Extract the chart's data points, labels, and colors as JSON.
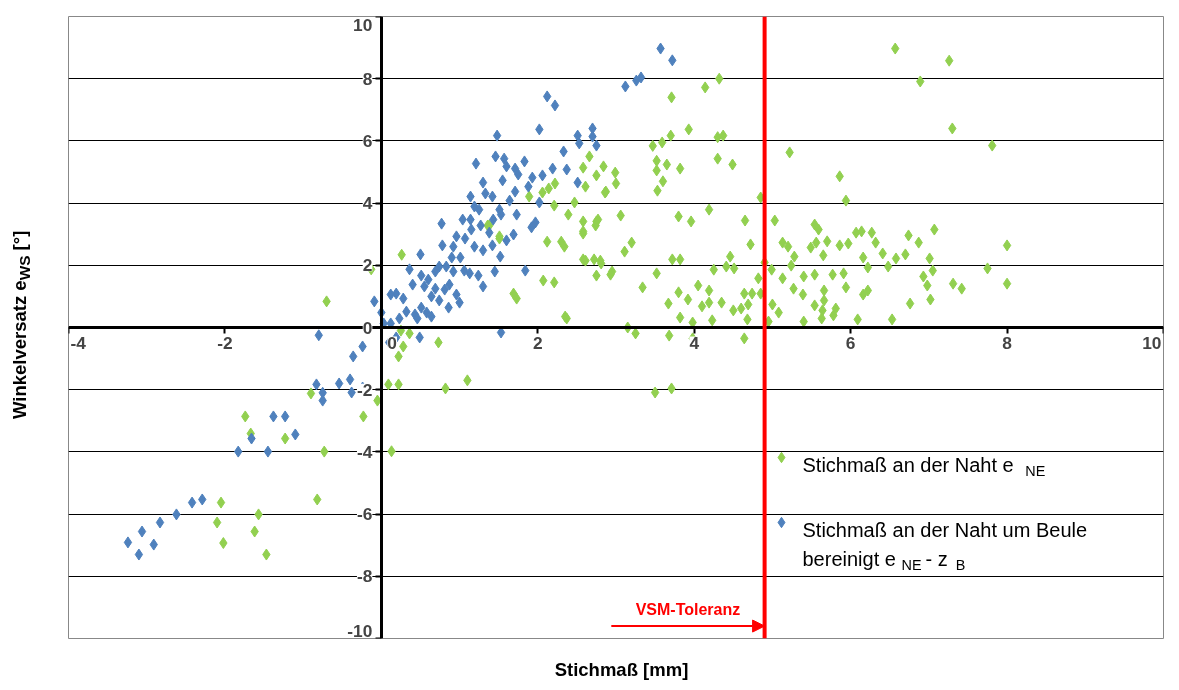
{
  "chart_data": {
    "type": "scatter",
    "xlabel": "Stichmaß [mm]",
    "ylabel": "Winkelversatz e$_{WS}$ [°]",
    "xlim": [
      -4,
      10
    ],
    "xticks": [
      -4,
      -2,
      0,
      2,
      4,
      6,
      8,
      10
    ],
    "ylim": [
      -10,
      10
    ],
    "yticks": [
      -10,
      -8,
      -6,
      -4,
      -2,
      0,
      2,
      4,
      6,
      8,
      10
    ],
    "grid": "y",
    "legend": "bottom right",
    "marker": "diamond",
    "ref_lines": [
      {
        "axis": "x",
        "value": 4.9,
        "label": "VSM-Toleranz",
        "color": "#ff0000"
      }
    ],
    "series": [
      {
        "name": "Stichmaß an der Naht e$_{NE}$",
        "color": "#92d050",
        "x": [
          -1.74,
          -1.67,
          -1.23,
          -0.9,
          -0.73,
          -0.23,
          -0.05,
          0.13,
          0.09,
          0.22,
          0.82,
          1.1,
          0.73,
          0.28,
          0.22,
          0.36,
          -0.82,
          -2.05,
          -2.1,
          -2.02,
          -1.57,
          -1.62,
          -1.47,
          -0.13,
          0.26,
          -0.7,
          1.69,
          1.73,
          2.07,
          2.21,
          2.35,
          2.12,
          2.3,
          2.34,
          1.89,
          2.06,
          2.14,
          2.22,
          2.21,
          2.39,
          2.47,
          2.58,
          2.58,
          2.75,
          2.58,
          2.72,
          2.81,
          2.75,
          2.95,
          2.66,
          2.58,
          2.61,
          2.75,
          2.84,
          2.87,
          1.38,
          1.51,
          6.57,
          7.26,
          6.89,
          7.3,
          7.81,
          4.32,
          4.14,
          3.71,
          3.93,
          3.7,
          3.59,
          3.47,
          4.3,
          4.37,
          4.3,
          4.49,
          3.82,
          3.52,
          3.65,
          3.52,
          3.6,
          3.53,
          2.99,
          3.0,
          2.86,
          3.06,
          3.8,
          3.96,
          4.19,
          4.65,
          4.85,
          5.22,
          5.86,
          5.94,
          5.03,
          2.74,
          2.77,
          2.58,
          3.2,
          3.11,
          2.61,
          2.8,
          2.93,
          3.34,
          3.52,
          3.72,
          3.82,
          3.67,
          3.8,
          3.92,
          3.82,
          3.98,
          3.15,
          3.25,
          4.05,
          4.19,
          4.25,
          4.46,
          4.41,
          4.51,
          4.72,
          4.1,
          4.19,
          4.23,
          4.35,
          4.5,
          4.6,
          4.69,
          4.68,
          4.64,
          4.74,
          4.85,
          4.82,
          4.9,
          4.99,
          5.13,
          5.2,
          5.13,
          5.28,
          5.24,
          5.0,
          5.08,
          4.95,
          5.4,
          5.27,
          5.39,
          5.54,
          5.64,
          5.63,
          5.78,
          5.81,
          5.66,
          5.66,
          5.4,
          5.54,
          5.49,
          5.56,
          5.54,
          5.59,
          5.65,
          5.77,
          5.91,
          5.94,
          5.7,
          5.86,
          5.97,
          6.16,
          6.22,
          6.16,
          6.22,
          6.09,
          6.07,
          6.14,
          6.27,
          6.32,
          6.41,
          6.48,
          6.58,
          6.7,
          6.74,
          6.87,
          7.07,
          7.01,
          7.05,
          6.93,
          6.98,
          7.02,
          6.76,
          6.53,
          7.31,
          7.42,
          7.75,
          8.0,
          8.0,
          2.37,
          3.68,
          3.98,
          4.64,
          3.5,
          3.71,
          0.25,
          1.36,
          1.51
        ],
        "values": [
          -2.86,
          -3.41,
          -3.57,
          -2.12,
          -3.99,
          -2.86,
          -2.35,
          -3.98,
          -1.83,
          -1.83,
          -1.96,
          -1.7,
          -0.48,
          -0.61,
          -0.93,
          -0.19,
          -5.53,
          -5.63,
          -6.27,
          -6.93,
          -6.01,
          -6.56,
          -7.3,
          1.87,
          2.34,
          0.84,
          1.09,
          0.93,
          1.51,
          1.45,
          0.35,
          2.76,
          2.76,
          2.6,
          4.21,
          4.34,
          4.47,
          4.63,
          3.92,
          3.63,
          4.02,
          3.41,
          3.09,
          3.41,
          2.19,
          2.19,
          2.06,
          1.67,
          1.8,
          5.5,
          5.14,
          4.53,
          4.89,
          5.18,
          4.37,
          3.28,
          2.86,
          8.97,
          8.58,
          7.91,
          6.4,
          5.85,
          8.0,
          7.72,
          7.4,
          6.37,
          6.17,
          5.95,
          5.84,
          6.12,
          6.17,
          5.43,
          5.24,
          5.11,
          5.36,
          5.24,
          5.05,
          4.7,
          4.4,
          4.98,
          4.63,
          4.34,
          3.6,
          3.57,
          3.41,
          3.79,
          3.44,
          4.18,
          5.63,
          4.86,
          4.08,
          3.44,
          3.28,
          3.47,
          3.02,
          2.73,
          2.44,
          2.15,
          2.15,
          1.7,
          1.29,
          1.74,
          2.19,
          2.19,
          0.77,
          1.13,
          0.9,
          0.32,
          0.16,
          0.0,
          -0.19,
          1.35,
          1.19,
          1.86,
          2.28,
          1.96,
          1.9,
          2.67,
          0.68,
          0.8,
          0.23,
          0.8,
          0.55,
          0.61,
          0.74,
          0.26,
          1.09,
          1.09,
          1.09,
          1.58,
          2.09,
          1.86,
          2.73,
          2.6,
          1.58,
          2.28,
          1.99,
          0.74,
          0.48,
          0.19,
          0.19,
          1.25,
          1.06,
          0.71,
          0.55,
          0.29,
          0.39,
          0.61,
          1.19,
          0.87,
          1.64,
          1.7,
          2.57,
          2.73,
          3.31,
          3.15,
          2.32,
          1.7,
          1.74,
          1.29,
          2.77,
          2.64,
          2.7,
          2.25,
          1.93,
          1.06,
          1.19,
          0.26,
          3.05,
          3.09,
          3.05,
          2.73,
          2.38,
          1.96,
          2.22,
          2.35,
          2.96,
          2.73,
          3.15,
          2.22,
          1.83,
          1.64,
          1.35,
          0.9,
          0.77,
          0.26,
          1.41,
          1.25,
          1.9,
          2.64,
          1.41,
          0.29,
          -0.26,
          -0.35,
          -0.35,
          -2.09,
          -1.96,
          -0.1,
          3.28,
          2.93
        ]
      },
      {
        "name": "Stichmaß an der Naht um Beule\nbereinigt e$_{NE}$ - z$_{B}$",
        "color": "#4f81bd",
        "x": [
          3.57,
          3.72,
          3.32,
          3.26,
          3.12,
          -1.38,
          -1.23,
          -1.1,
          -1.66,
          -1.83,
          -1.45,
          -2.29,
          -2.42,
          -2.62,
          -2.83,
          -3.06,
          -3.24,
          -3.1,
          -2.91,
          -0.8,
          -0.83,
          -0.75,
          -0.75,
          -0.54,
          -0.4,
          -0.38,
          -0.24,
          -0.36,
          -0.24,
          0.1,
          0.19,
          0.49,
          1.53,
          2.12,
          2.22,
          2.02,
          1.48,
          1.21,
          1.46,
          1.57,
          1.6,
          1.71,
          1.83,
          1.75,
          1.93,
          2.06,
          2.19,
          2.37,
          2.51,
          2.33,
          2.51,
          2.53,
          2.7,
          2.7,
          2.75,
          1.88,
          2.02,
          1.92,
          1.97,
          1.73,
          1.69,
          1.6,
          1.52,
          1.45,
          1.84,
          1.53,
          1.43,
          1.51,
          1.64,
          1.71,
          1.55,
          1.3,
          1.33,
          1.42,
          1.14,
          1.19,
          1.25,
          1.04,
          0.77,
          1.14,
          1.15,
          1.27,
          1.38,
          1.42,
          1.3,
          1.19,
          1.07,
          0.96,
          0.78,
          0.92,
          1.01,
          0.9,
          0.83,
          0.74,
          0.69,
          0.92,
          1.06,
          1.13,
          1.24,
          1.3,
          0.6,
          0.51,
          0.5,
          0.36,
          0.4,
          0.55,
          0.69,
          0.81,
          0.87,
          0.96,
          1.0,
          0.86,
          0.74,
          0.64,
          0.64,
          0.51,
          0.43,
          0.32,
          0.28,
          0.19,
          0.12,
          0.23,
          0.12,
          0.03,
          0.0,
          -0.09,
          0.46,
          0.58
        ],
        "values": [
          8.97,
          8.59,
          8.04,
          7.94,
          7.75,
          -2.86,
          -2.86,
          -3.44,
          -3.57,
          -3.99,
          -3.99,
          -5.53,
          -5.63,
          -6.01,
          -6.27,
          -6.56,
          -6.91,
          -7.3,
          -6.98,
          -0.25,
          -1.83,
          -2.1,
          -2.35,
          -1.8,
          -1.67,
          -2.09,
          -1.93,
          -0.93,
          -0.61,
          -0.48,
          -0.32,
          -0.32,
          -0.16,
          7.43,
          7.14,
          6.37,
          6.17,
          5.27,
          5.5,
          5.43,
          5.18,
          5.11,
          5.34,
          4.92,
          4.82,
          4.89,
          5.11,
          5.08,
          4.66,
          5.66,
          6.17,
          5.92,
          6.4,
          6.14,
          5.85,
          4.53,
          4.02,
          3.22,
          3.38,
          3.63,
          2.99,
          2.8,
          2.28,
          1.8,
          1.83,
          3.63,
          3.47,
          3.79,
          4.08,
          4.37,
          4.73,
          4.66,
          4.31,
          4.21,
          4.21,
          3.89,
          3.79,
          3.47,
          3.34,
          3.47,
          3.15,
          3.28,
          3.05,
          2.64,
          2.48,
          2.6,
          2.86,
          2.93,
          2.64,
          2.6,
          2.25,
          2.25,
          1.96,
          1.96,
          1.8,
          1.8,
          1.83,
          1.74,
          1.67,
          1.32,
          1.54,
          1.67,
          2.35,
          1.87,
          1.38,
          1.32,
          1.25,
          1.22,
          1.38,
          1.06,
          0.8,
          0.64,
          0.87,
          1.0,
          0.35,
          0.64,
          0.42,
          0.51,
          0.93,
          1.09,
          1.06,
          0.29,
          0.13,
          0.13,
          0.48,
          0.84,
          0.29,
          0.48
        ]
      }
    ]
  }
}
